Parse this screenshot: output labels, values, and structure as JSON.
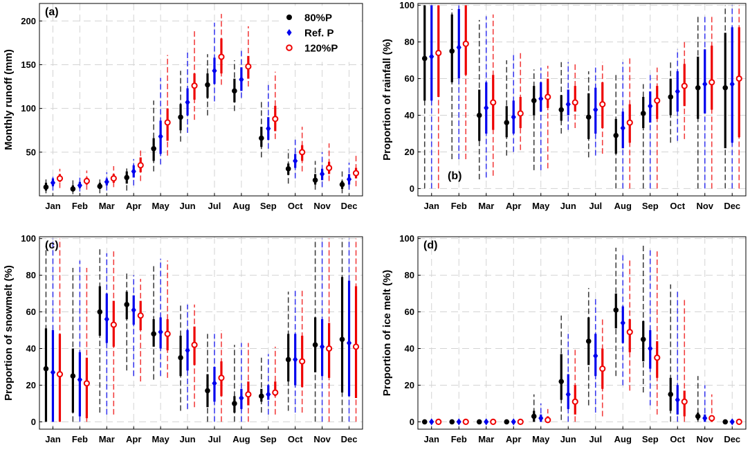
{
  "legend": {
    "location": "top-right of panel (a)",
    "items": [
      {
        "label": "80%P",
        "color": "#000000",
        "marker": "circle-filled"
      },
      {
        "label": "Ref. P",
        "color": "#0000ee",
        "marker": "diamond-filled"
      },
      {
        "label": "120%P",
        "color": "#ee0000",
        "marker": "circle-open"
      }
    ]
  },
  "chart_data": [
    {
      "type": "errorbar",
      "panel_label": "(a)",
      "ylabel": "Monthly runoff (mm)",
      "categories": [
        "Jan",
        "Feb",
        "Mar",
        "Apr",
        "May",
        "Jun",
        "Jul",
        "Aug",
        "Sep",
        "Oct",
        "Nov",
        "Dec"
      ],
      "ylim": [
        0,
        220
      ],
      "yticks": [
        50,
        100,
        150,
        200
      ],
      "grid": true,
      "series": [
        {
          "name": "80%P",
          "median": [
            10,
            8,
            11,
            21,
            54,
            90,
            127,
            120,
            66,
            31,
            18,
            13
          ],
          "box_low": [
            6,
            5,
            8,
            14,
            40,
            75,
            112,
            107,
            56,
            24,
            13,
            8
          ],
          "box_high": [
            15,
            12,
            15,
            28,
            66,
            105,
            140,
            134,
            79,
            37,
            25,
            17
          ],
          "whisker_low": [
            3,
            2,
            3,
            6,
            28,
            62,
            92,
            97,
            44,
            14,
            7,
            3
          ],
          "whisker_high": [
            21,
            18,
            21,
            32,
            109,
            143,
            162,
            155,
            110,
            53,
            40,
            28
          ]
        },
        {
          "name": "Ref. P",
          "median": [
            15,
            12,
            16,
            28,
            68,
            107,
            143,
            133,
            77,
            40,
            25,
            19
          ],
          "box_low": [
            11,
            9,
            12,
            21,
            48,
            92,
            128,
            120,
            64,
            32,
            18,
            13
          ],
          "box_high": [
            20,
            16,
            20,
            35,
            86,
            123,
            158,
            147,
            90,
            48,
            31,
            25
          ],
          "whisker_low": [
            6,
            5,
            6,
            12,
            36,
            72,
            108,
            112,
            54,
            20,
            10,
            7
          ],
          "whisker_high": [
            25,
            23,
            27,
            42,
            135,
            165,
            198,
            168,
            127,
            66,
            50,
            38
          ]
        },
        {
          "name": "120%P",
          "median": [
            20,
            17,
            20,
            35,
            84,
            126,
            159,
            148,
            88,
            50,
            32,
            26
          ],
          "box_low": [
            16,
            13,
            15,
            27,
            63,
            110,
            140,
            134,
            74,
            40,
            25,
            20
          ],
          "box_high": [
            25,
            21,
            25,
            44,
            100,
            140,
            180,
            160,
            103,
            58,
            39,
            32
          ],
          "whisker_low": [
            9,
            7,
            10,
            17,
            46,
            87,
            127,
            125,
            65,
            28,
            17,
            11
          ],
          "whisker_high": [
            31,
            29,
            34,
            54,
            161,
            190,
            208,
            194,
            142,
            79,
            60,
            48
          ]
        }
      ]
    },
    {
      "type": "errorbar",
      "panel_label": "(b)",
      "ylabel": "Proportion of rainfall (%)",
      "categories": [
        "Jan",
        "Feb",
        "Mar",
        "Apr",
        "May",
        "Jun",
        "Jul",
        "Aug",
        "Sep",
        "Oct",
        "Nov",
        "Dec"
      ],
      "ylim": [
        -4,
        101
      ],
      "yticks": [
        0,
        20,
        40,
        60,
        80,
        100
      ],
      "grid": true,
      "series": [
        {
          "name": "80%P",
          "median": [
            71,
            75,
            40,
            36,
            48,
            43,
            39,
            29,
            41,
            50,
            55,
            55
          ],
          "box_low": [
            48,
            58,
            26,
            28,
            40,
            37,
            27,
            19,
            33,
            40,
            38,
            22
          ],
          "box_high": [
            100,
            95,
            54,
            45,
            56,
            51,
            52,
            38,
            50,
            60,
            72,
            85
          ],
          "whisker_low": [
            0,
            16,
            5,
            18,
            10,
            30,
            17,
            0,
            0,
            25,
            0,
            0
          ],
          "whisker_high": [
            100,
            98,
            92,
            70,
            65,
            69,
            64,
            63,
            57,
            70,
            94,
            100
          ]
        },
        {
          "name": "Ref. P",
          "median": [
            72,
            77,
            44,
            39,
            49,
            46,
            43,
            33,
            45,
            53,
            57,
            57
          ],
          "box_low": [
            48,
            60,
            30,
            30,
            42,
            40,
            30,
            22,
            36,
            42,
            41,
            25
          ],
          "box_high": [
            100,
            98,
            58,
            48,
            58,
            54,
            55,
            42,
            53,
            64,
            76,
            88
          ],
          "whisker_low": [
            0,
            16,
            6,
            20,
            10,
            32,
            18,
            0,
            0,
            26,
            0,
            0
          ],
          "whisker_high": [
            100,
            100,
            94,
            73,
            66,
            69,
            66,
            69,
            62,
            76,
            95,
            100
          ]
        },
        {
          "name": "120%P",
          "median": [
            74,
            79,
            47,
            41,
            50,
            47,
            46,
            36,
            48,
            56,
            58,
            60
          ],
          "box_low": [
            50,
            62,
            32,
            33,
            44,
            42,
            33,
            25,
            38,
            45,
            43,
            28
          ],
          "box_high": [
            100,
            100,
            62,
            50,
            60,
            56,
            58,
            46,
            56,
            68,
            78,
            88
          ],
          "whisker_low": [
            0,
            16,
            7,
            21,
            11,
            33,
            19,
            0,
            0,
            27,
            0,
            0
          ],
          "whisker_high": [
            100,
            100,
            95,
            75,
            67,
            68,
            69,
            72,
            66,
            80,
            94,
            100
          ]
        }
      ]
    },
    {
      "type": "errorbar",
      "panel_label": "(c)",
      "ylabel": "Proportion of snowmelt (%)",
      "categories": [
        "Jan",
        "Feb",
        "Mar",
        "Apr",
        "May",
        "Jun",
        "Jul",
        "Aug",
        "Sep",
        "Oct",
        "Nov",
        "Dec"
      ],
      "ylim": [
        -4,
        101
      ],
      "yticks": [
        0,
        20,
        40,
        60,
        80,
        100
      ],
      "grid": true,
      "series": [
        {
          "name": "80%P",
          "median": [
            29,
            25,
            60,
            64,
            48,
            35,
            17,
            10,
            14,
            34,
            42,
            45
          ],
          "box_low": [
            0,
            5,
            47,
            56,
            41,
            25,
            8,
            5,
            11,
            22,
            27,
            16
          ],
          "box_high": [
            51,
            40,
            74,
            71,
            56,
            47,
            26,
            14,
            18,
            48,
            57,
            79
          ],
          "whisker_low": [
            0,
            0,
            5,
            28,
            23,
            6,
            0,
            0,
            5,
            6,
            0,
            0
          ],
          "whisker_high": [
            96,
            84,
            95,
            81,
            86,
            65,
            48,
            42,
            35,
            71,
            100,
            100
          ]
        },
        {
          "name": "Ref. P",
          "median": [
            27,
            23,
            56,
            61,
            49,
            39,
            21,
            13,
            15,
            34,
            41,
            43
          ],
          "box_low": [
            0,
            3,
            43,
            53,
            40,
            28,
            11,
            7,
            12,
            20,
            25,
            14
          ],
          "box_high": [
            50,
            38,
            70,
            69,
            57,
            50,
            30,
            18,
            20,
            48,
            56,
            77
          ],
          "whisker_low": [
            0,
            0,
            4,
            25,
            25,
            7,
            0,
            0,
            4,
            5,
            0,
            0
          ],
          "whisker_high": [
            100,
            88,
            92,
            80,
            89,
            64,
            48,
            43,
            37,
            73,
            100,
            100
          ]
        },
        {
          "name": "120%P",
          "median": [
            26,
            21,
            53,
            58,
            48,
            42,
            24,
            15,
            16,
            33,
            40,
            41
          ],
          "box_low": [
            0,
            2,
            41,
            50,
            39,
            31,
            14,
            9,
            14,
            19,
            24,
            13
          ],
          "box_high": [
            48,
            35,
            66,
            66,
            56,
            52,
            33,
            22,
            22,
            47,
            54,
            74
          ],
          "whisker_low": [
            0,
            0,
            4,
            22,
            24,
            8,
            0,
            0,
            4,
            5,
            0,
            0
          ],
          "whisker_high": [
            100,
            84,
            93,
            78,
            88,
            64,
            50,
            43,
            41,
            73,
            100,
            100
          ]
        }
      ]
    },
    {
      "type": "errorbar",
      "panel_label": "(d)",
      "ylabel": "Proportion of ice melt (%)",
      "categories": [
        "Jan",
        "Feb",
        "Mar",
        "Apr",
        "May",
        "Jun",
        "Jul",
        "Aug",
        "Sep",
        "Oct",
        "Nov",
        "Dec"
      ],
      "ylim": [
        -4,
        101
      ],
      "yticks": [
        0,
        20,
        40,
        60,
        80,
        100
      ],
      "grid": true,
      "series": [
        {
          "name": "80%P",
          "median": [
            0,
            0,
            0,
            0,
            3,
            22,
            44,
            61,
            45,
            15,
            3,
            0
          ],
          "box_low": [
            0,
            0,
            0,
            0,
            0,
            12,
            31,
            51,
            33,
            6,
            1,
            0
          ],
          "box_high": [
            0,
            0,
            0,
            0,
            6,
            37,
            57,
            70,
            55,
            24,
            5,
            0
          ],
          "whisker_low": [
            0,
            0,
            0,
            0,
            0,
            1,
            9,
            25,
            16,
            0,
            0,
            0
          ],
          "whisker_high": [
            0,
            0,
            0,
            1,
            15,
            58,
            73,
            95,
            97,
            75,
            25,
            0
          ]
        },
        {
          "name": "Ref. P",
          "median": [
            0,
            0,
            0,
            0,
            2,
            15,
            36,
            54,
            40,
            12,
            2,
            0
          ],
          "box_low": [
            0,
            0,
            0,
            0,
            0,
            7,
            25,
            43,
            29,
            4,
            0,
            0
          ],
          "box_high": [
            0,
            0,
            0,
            0,
            4,
            26,
            48,
            63,
            50,
            20,
            4,
            0
          ],
          "whisker_low": [
            0,
            0,
            0,
            0,
            0,
            0,
            5,
            20,
            9,
            0,
            0,
            0
          ],
          "whisker_high": [
            0,
            0,
            0,
            1,
            10,
            48,
            67,
            91,
            95,
            71,
            20,
            0
          ]
        },
        {
          "name": "120%P",
          "median": [
            0,
            0,
            0,
            0,
            1,
            11,
            29,
            49,
            35,
            11,
            2,
            0
          ],
          "box_low": [
            0,
            0,
            0,
            0,
            0,
            4,
            18,
            38,
            24,
            3,
            0,
            0
          ],
          "box_high": [
            0,
            0,
            0,
            0,
            3,
            20,
            40,
            56,
            44,
            17,
            3,
            0
          ],
          "whisker_low": [
            0,
            0,
            0,
            0,
            0,
            0,
            3,
            17,
            4,
            0,
            0,
            0
          ],
          "whisker_high": [
            0,
            0,
            0,
            1,
            7,
            40,
            56,
            88,
            93,
            67,
            15,
            0
          ]
        }
      ]
    }
  ]
}
